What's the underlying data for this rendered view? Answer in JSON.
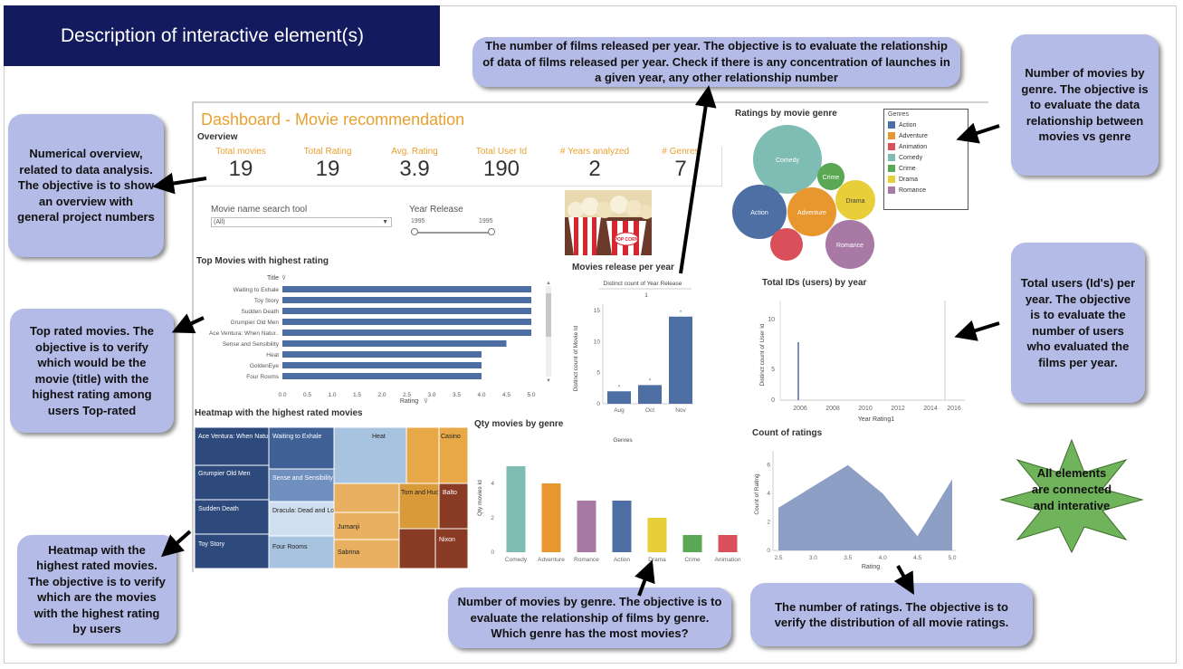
{
  "title": "Description of interactive element(s)",
  "callouts": {
    "overview": "Numerical overview, related to data analysis. The objective is to show an overview with general project numbers",
    "top_rated": "Top rated movies. The objective is to verify which would be the movie (title) with the highest rating among users Top-rated",
    "heatmap": "Heatmap with the highest rated movies. The objective is to verify which are the movies with the highest rating by users",
    "release": "The number of films released per year. The objective is to evaluate the relationship of data of films released per year. Check if there is any concentration of launches in a given year, any other relationship number",
    "qty_genre": "Number of movies by genre. The objective is to evaluate the relationship of films by genre. Which genre has the most movies?",
    "genre_bubbles": "Number of movies by genre. The objective is to evaluate the data relationship between movies vs genre",
    "users": "Total users (Id's) per year. The objective is to evaluate the number of users who evaluated the films per year.",
    "ratings": "The number of ratings. The objective is to verify the distribution of all movie ratings.",
    "star": "All elements are connected and interative"
  },
  "dashboard": {
    "title": "Dashboard - Movie recommendation",
    "overview_label": "Overview",
    "kpis": [
      {
        "label": "Total movies",
        "value": "19"
      },
      {
        "label": "Total Rating",
        "value": "19"
      },
      {
        "label": "Avg. Rating",
        "value": "3.9"
      },
      {
        "label": "Total User Id",
        "value": "190"
      },
      {
        "label": "# Years analyzed",
        "value": "2"
      },
      {
        "label": "# Genres",
        "value": "7"
      }
    ],
    "search_label": "Movie name search tool",
    "search_value": "(All)",
    "year_label": "Year Release",
    "year_min": "1995",
    "year_max": "1995",
    "popcorn_text": "POP CORN",
    "top_movies": {
      "title": "Top Movies with highest rating",
      "col_header": "Title",
      "axis_label": "Rating",
      "categories": [
        "Waiting to Exhale",
        "Toy Story",
        "Sudden Death",
        "Grumpier Old Men",
        "Ace Ventura: When Natur..",
        "Sense and Sensibility",
        "Heat",
        "GoldenEye",
        "Four Rooms"
      ],
      "values": [
        5.0,
        5.0,
        5.0,
        5.0,
        5.0,
        4.5,
        4.0,
        4.0,
        4.0
      ],
      "ticks": [
        "0.0",
        "0.5",
        "1.0",
        "1.5",
        "2.0",
        "2.5",
        "3.0",
        "3.5",
        "4.0",
        "4.5",
        "5.0"
      ]
    },
    "release": {
      "title": "Movies release per year",
      "chart_title": "Distinct count of Year Release",
      "facet": "1",
      "ylabel": "Distinct count of Movie Id",
      "categories": [
        "Aug",
        "Oct",
        "Nov"
      ],
      "values": [
        2,
        3,
        14
      ],
      "yticks": [
        "0",
        "5",
        "10",
        "15"
      ]
    },
    "genre_bubbles": {
      "title": "Ratings by movie genre",
      "legend_title": "Genres",
      "legend": [
        {
          "name": "Action",
          "color": "#4e6fa3"
        },
        {
          "name": "Adventure",
          "color": "#e8962e"
        },
        {
          "name": "Animation",
          "color": "#d9505a"
        },
        {
          "name": "Comedy",
          "color": "#7fbdb4"
        },
        {
          "name": "Crime",
          "color": "#5aa853"
        },
        {
          "name": "Drama",
          "color": "#e8cf3a"
        },
        {
          "name": "Romance",
          "color": "#a979a6"
        }
      ]
    },
    "users": {
      "title": "Total IDs (users) by year",
      "ylabel": "Distinct count of User Id",
      "xlabel": "Year Rating1",
      "xticks": [
        "2006",
        "2008",
        "2010",
        "2012",
        "2014",
        "2016"
      ],
      "yticks": [
        "0",
        "5",
        "10"
      ]
    },
    "heatmap": {
      "title": "Heatmap with the highest rated movies",
      "cells": [
        "Ace Ventura: When Nature Calls",
        "Grumpier Old Men",
        "Sudden Death",
        "Toy Story",
        "Waiting to Exhale",
        "Sense and Sensibility",
        "Dracula: Dead and Loving It",
        "Four Rooms",
        "Heat",
        "Casino",
        "Tom and Huck",
        "Balto",
        "Jumanji",
        "Sabrina",
        "Nixon"
      ]
    },
    "qty_genre": {
      "title": "Qty movies by genre",
      "chart_title": "Genres",
      "ylabel": "Qty movies Id",
      "categories": [
        "Comedy",
        "Adventure",
        "Romance",
        "Action",
        "Drama",
        "Crime",
        "Animation"
      ],
      "values": [
        5,
        4,
        3,
        3,
        2,
        1,
        1
      ],
      "colors": [
        "#7fbdb4",
        "#e8962e",
        "#a979a6",
        "#4e6fa3",
        "#e8cf3a",
        "#5aa853",
        "#d9505a"
      ],
      "yticks": [
        "0",
        "2",
        "4"
      ]
    },
    "ratings": {
      "title": "Count of ratings",
      "ylabel": "Count of Rating",
      "xlabel": "Rating",
      "xticks": [
        "2.5",
        "3.0",
        "3.5",
        "4.0",
        "4.5",
        "5.0"
      ],
      "yticks": [
        "0",
        "2",
        "4",
        "6"
      ],
      "x": [
        2.5,
        3.5,
        4.0,
        4.5,
        5.0
      ],
      "y": [
        3,
        6,
        4,
        1,
        5
      ]
    }
  },
  "chart_data": [
    {
      "type": "bar",
      "title": "Top Movies with highest rating",
      "categories": [
        "Waiting to Exhale",
        "Toy Story",
        "Sudden Death",
        "Grumpier Old Men",
        "Ace Ventura: When Natur..",
        "Sense and Sensibility",
        "Heat",
        "GoldenEye",
        "Four Rooms"
      ],
      "values": [
        5.0,
        5.0,
        5.0,
        5.0,
        5.0,
        4.5,
        4.0,
        4.0,
        4.0
      ],
      "xlabel": "Rating",
      "xlim": [
        0,
        5
      ]
    },
    {
      "type": "bar",
      "title": "Movies release per year",
      "categories": [
        "Aug",
        "Oct",
        "Nov"
      ],
      "values": [
        2,
        3,
        14
      ],
      "ylabel": "Distinct count of Movie Id",
      "ylim": [
        0,
        16
      ]
    },
    {
      "type": "bar",
      "title": "Qty movies by genre",
      "categories": [
        "Comedy",
        "Adventure",
        "Romance",
        "Action",
        "Drama",
        "Crime",
        "Animation"
      ],
      "values": [
        5,
        4,
        3,
        3,
        2,
        1,
        1
      ],
      "ylabel": "Qty movies Id",
      "ylim": [
        0,
        6
      ]
    },
    {
      "type": "area",
      "title": "Count of ratings",
      "x": [
        2.5,
        3.5,
        4.0,
        4.5,
        5.0
      ],
      "y": [
        3,
        6,
        4,
        1,
        5
      ],
      "xlabel": "Rating",
      "ylabel": "Count of Rating",
      "xlim": [
        2.5,
        5.0
      ],
      "ylim": [
        0,
        7
      ]
    }
  ]
}
